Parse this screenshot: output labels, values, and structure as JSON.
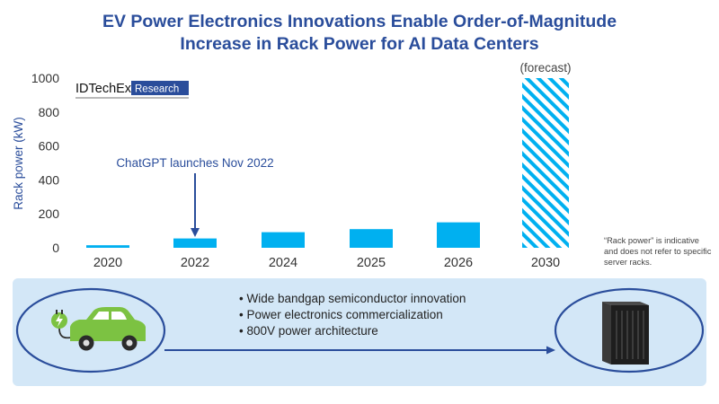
{
  "title_line1": "EV Power Electronics Innovations Enable Order-of-Magnitude",
  "title_line2": "Increase in Rack Power for AI Data Centers",
  "logo": {
    "text": "IDTechEx",
    "badge": "Research"
  },
  "footnote": "“Rack power” is indicative and does not refer to specific server racks.",
  "bullets": [
    "Wide bandgap semiconductor innovation",
    "Power electronics commercialization",
    "800V power architecture"
  ],
  "chart_data": {
    "type": "bar",
    "categories": [
      "2020",
      "2022",
      "2024",
      "2025",
      "2026",
      "2030"
    ],
    "values": [
      15,
      55,
      92,
      110,
      150,
      1000
    ],
    "forecast": [
      false,
      false,
      false,
      false,
      false,
      true
    ],
    "ylabel": "Rack power (kW)",
    "xlabel": "",
    "ylim": [
      0,
      1000
    ],
    "yticks": [
      0,
      200,
      400,
      600,
      800,
      1000
    ],
    "annotations": [
      {
        "text": "ChatGPT launches Nov 2022",
        "category": "2022"
      },
      {
        "text": "(forecast)",
        "category": "2030"
      }
    ],
    "bar_color": "#00b0f0",
    "grid": false
  },
  "colors": {
    "title": "#2a4d9b",
    "axis_label": "#2a4d9b",
    "bar": "#00b0f0",
    "arrow": "#2a4d9b",
    "banner": "#d3e7f7",
    "car": "#7cc242"
  },
  "icons": {
    "left": "electric-car-icon",
    "right": "server-rack-icon",
    "plug": "plug-icon"
  }
}
